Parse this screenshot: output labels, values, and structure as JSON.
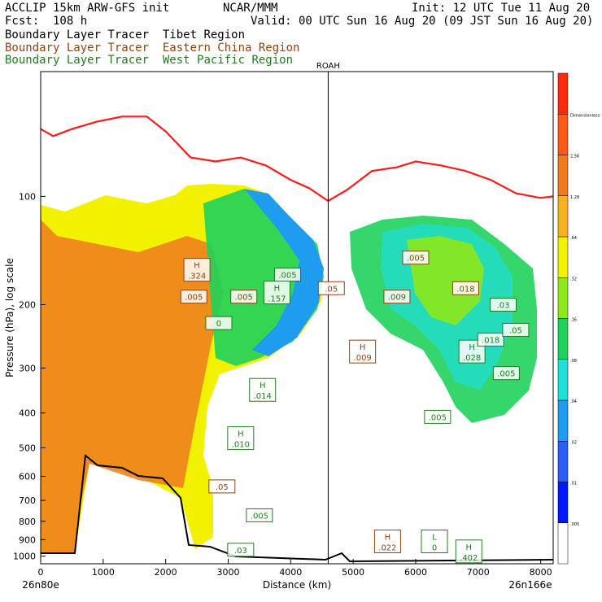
{
  "header": {
    "model": "ACCLIP 15km ARW-GFS init",
    "org": "NCAR/MMM",
    "init": "Init: 12 UTC Tue 11 Aug 20",
    "fcst": "Fcst:  108 h",
    "valid": "Valid: 00 UTC Sun 16 Aug 20 (09 JST Sun 16 Aug 20)"
  },
  "tracers": [
    {
      "label": "Boundary Layer Tracer",
      "region": "Tibet Region",
      "color": "#000000"
    },
    {
      "label": "Boundary Layer Tracer",
      "region": "Eastern China Region",
      "color": "#8b4513"
    },
    {
      "label": "Boundary Layer Tracer",
      "region": "West Pacific Region",
      "color": "#1e7d1e"
    }
  ],
  "chart_data": {
    "type": "heatmap",
    "xlabel": "Distance (km)",
    "ylabel": "Pressure (hPa), log scale",
    "x_ticks": [
      0,
      1000,
      2000,
      3000,
      4000,
      5000,
      6000,
      7000,
      8000
    ],
    "x_tick_labels": [
      "0",
      "1000",
      "2000",
      "3000",
      "4000",
      "5000",
      "6000",
      "7000",
      "8000"
    ],
    "y_ticks": [
      100,
      200,
      300,
      400,
      500,
      600,
      700,
      800,
      900,
      1000
    ],
    "y_tick_labels": [
      "100",
      "200",
      "300",
      "400",
      "500",
      "600",
      "700",
      "800",
      "900",
      "1000"
    ],
    "xlim": [
      0,
      8200
    ],
    "ylim": [
      1050,
      45
    ],
    "y_scale": "log",
    "left_endpoint": "26n80e",
    "right_endpoint": "26n166e",
    "marker": {
      "label": "ROAH",
      "x": 4600
    },
    "colorbar": {
      "labels": [
        ".005",
        ".01",
        ".02",
        ".04",
        ".08",
        ".16",
        ".32",
        ".64",
        "1.28",
        "2.56",
        "Dimensionless"
      ],
      "colors": [
        "#ffffff",
        "#0018ff",
        "#2a5cf6",
        "#1d9cf0",
        "#1ee0d8",
        "#1fd25c",
        "#8ee81a",
        "#f2f200",
        "#f7b21e",
        "#f07a1e",
        "#ff5a14",
        "#ff2a0a"
      ]
    },
    "tropopause_pressure": {
      "x": [
        0,
        200,
        500,
        900,
        1300,
        1700,
        2000,
        2400,
        2800,
        3200,
        3600,
        4000,
        4300,
        4600,
        4900,
        5300,
        5700,
        6000,
        6400,
        6800,
        7200,
        7600,
        8000,
        8200
      ],
      "p": [
        65,
        68,
        65,
        62,
        60,
        60,
        66,
        78,
        80,
        78,
        82,
        90,
        95,
        103,
        96,
        85,
        83,
        80,
        82,
        85,
        90,
        98,
        101,
        100
      ]
    },
    "regions": [
      {
        "name": "left-plume",
        "color": "#f07a1e",
        "x": [
          0,
          2600
        ],
        "p_top": 100,
        "p_bottom": 1000
      },
      {
        "name": "upper-plume",
        "color": "#f2f200",
        "x": [
          2200,
          4600
        ],
        "p_top": 100,
        "p_bottom": 380
      },
      {
        "name": "right-plume",
        "color": "#1fd25c",
        "x": [
          4950,
          7850
        ],
        "p_top": 145,
        "p_bottom": 500
      }
    ],
    "annotations": [
      {
        "text": "H",
        "value": ".324",
        "x": 2500,
        "p": 160,
        "color": "#8b4513"
      },
      {
        "text": "",
        "value": ".005",
        "x": 2450,
        "p": 190,
        "color": "#8b4513"
      },
      {
        "text": "",
        "value": ".005",
        "x": 3250,
        "p": 190,
        "color": "#8b4513"
      },
      {
        "text": "H",
        "value": ".157",
        "x": 3780,
        "p": 185,
        "color": "#1e7d1e"
      },
      {
        "text": "",
        "value": ".005",
        "x": 3950,
        "p": 165,
        "color": "#1e7d1e"
      },
      {
        "text": "",
        "value": ".05",
        "x": 4650,
        "p": 180,
        "color": "#8b4513"
      },
      {
        "text": "",
        "value": "0",
        "x": 2850,
        "p": 225,
        "color": "#1e7d1e"
      },
      {
        "text": "H",
        "value": ".009",
        "x": 5150,
        "p": 270,
        "color": "#8b4513"
      },
      {
        "text": "H",
        "value": ".014",
        "x": 3550,
        "p": 345,
        "color": "#1e7d1e"
      },
      {
        "text": "H",
        "value": ".010",
        "x": 3200,
        "p": 470,
        "color": "#1e7d1e"
      },
      {
        "text": "",
        "value": ".05",
        "x": 2900,
        "p": 640,
        "color": "#8b4513"
      },
      {
        "text": "",
        "value": ".005",
        "x": 3500,
        "p": 770,
        "color": "#1e7d1e"
      },
      {
        "text": "",
        "value": ".03",
        "x": 3200,
        "p": 960,
        "color": "#1e7d1e"
      },
      {
        "text": "",
        "value": ".005",
        "x": 6000,
        "p": 148,
        "color": "#8b4513"
      },
      {
        "text": "",
        "value": ".009",
        "x": 5700,
        "p": 190,
        "color": "#8b4513"
      },
      {
        "text": "",
        "value": ".018",
        "x": 6800,
        "p": 180,
        "color": "#8b4513"
      },
      {
        "text": "",
        "value": ".03",
        "x": 7400,
        "p": 200,
        "color": "#1e7d1e"
      },
      {
        "text": "H",
        "value": ".028",
        "x": 6900,
        "p": 270,
        "color": "#1e7d1e"
      },
      {
        "text": "",
        "value": ".018",
        "x": 7200,
        "p": 250,
        "color": "#1e7d1e"
      },
      {
        "text": "",
        "value": ".05",
        "x": 7600,
        "p": 235,
        "color": "#1e7d1e"
      },
      {
        "text": "",
        "value": ".005",
        "x": 7450,
        "p": 310,
        "color": "#1e7d1e"
      },
      {
        "text": "H",
        "value": ".022",
        "x": 5550,
        "p": 910,
        "color": "#8b4513"
      },
      {
        "text": "L",
        "value": "0",
        "x": 6300,
        "p": 910,
        "color": "#1e7d1e"
      },
      {
        "text": "H",
        "value": ".402",
        "x": 6850,
        "p": 970,
        "color": "#1e7d1e"
      },
      {
        "text": "",
        "value": ".005",
        "x": 6350,
        "p": 410,
        "color": "#1e7d1e"
      }
    ]
  }
}
